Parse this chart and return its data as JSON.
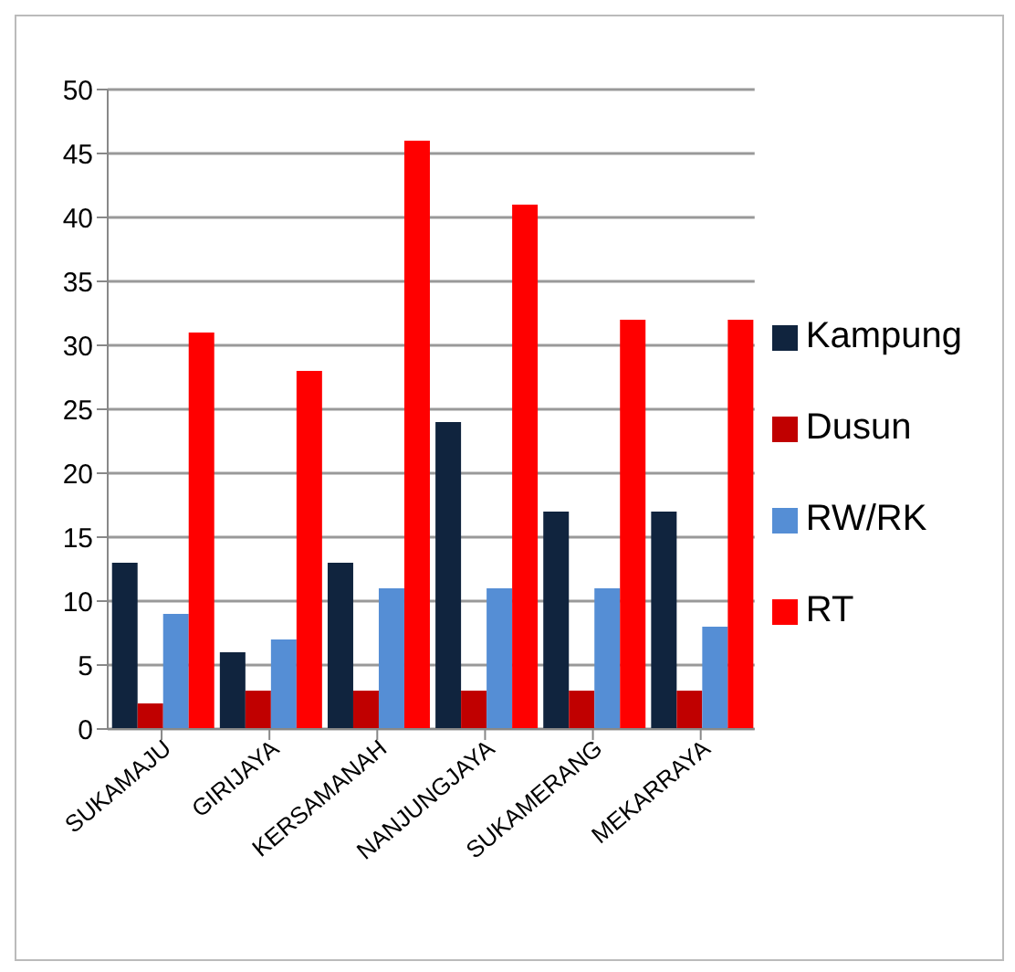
{
  "chart_data": {
    "type": "bar",
    "categories": [
      "SUKAMAJU",
      "GIRIJAYA",
      "KERSAMANAH",
      "NANJUNGJAYA",
      "SUKAMERANG",
      "MEKARRAYA"
    ],
    "series": [
      {
        "name": "Kampung",
        "color": "#10243e",
        "values": [
          13,
          6,
          13,
          24,
          17,
          17
        ]
      },
      {
        "name": "Dusun",
        "color": "#c00000",
        "values": [
          2,
          3,
          3,
          3,
          3,
          3
        ]
      },
      {
        "name": "RW/RK",
        "color": "#558ed5",
        "values": [
          9,
          7,
          11,
          11,
          11,
          8
        ]
      },
      {
        "name": "RT",
        "color": "#ff0000",
        "values": [
          31,
          28,
          46,
          41,
          32,
          32
        ]
      }
    ],
    "ylim": [
      0,
      50
    ],
    "yticks": [
      0,
      5,
      10,
      15,
      20,
      25,
      30,
      35,
      40,
      45,
      50
    ],
    "grid": "y",
    "legend": "right"
  }
}
